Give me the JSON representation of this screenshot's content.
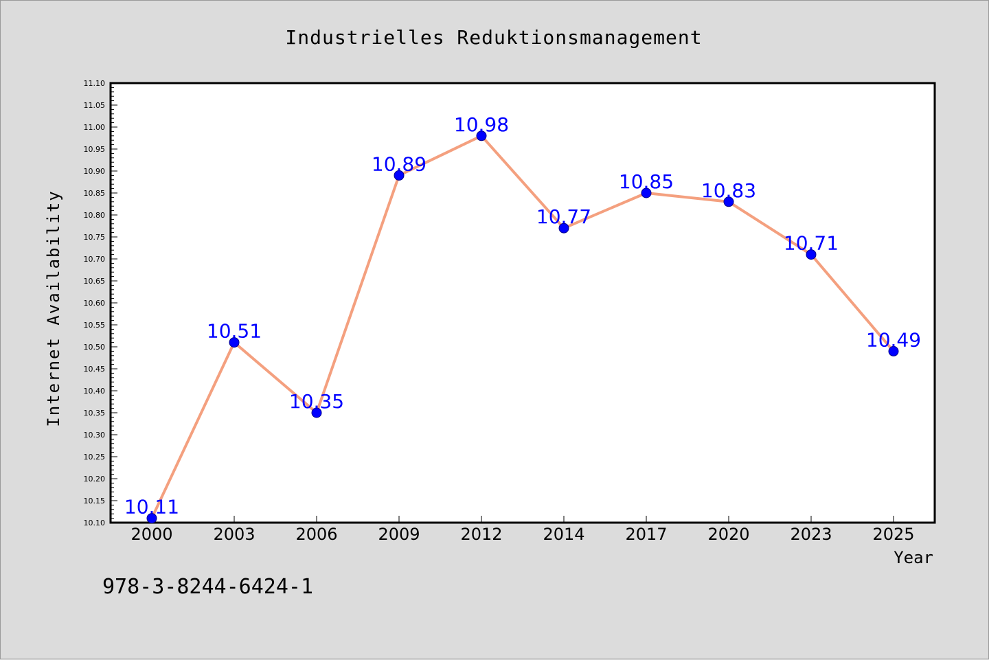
{
  "chart_data": {
    "type": "line",
    "title": "Industrielles Reduktionsmanagement",
    "xlabel": "Year",
    "ylabel": "Internet Availability",
    "categories": [
      "2000",
      "2003",
      "2006",
      "2009",
      "2012",
      "2014",
      "2017",
      "2020",
      "2023",
      "2025"
    ],
    "series": [
      {
        "values": [
          10.11,
          10.51,
          10.35,
          10.89,
          10.98,
          10.77,
          10.85,
          10.83,
          10.71,
          10.49
        ],
        "data_labels": [
          "10.11",
          "10.51",
          "10.35",
          "10.89",
          "10.98",
          "10.77",
          "10.85",
          "10.83",
          "10.71",
          "10.49"
        ],
        "line_color": "#f4a07f",
        "marker_color": "#0000ff",
        "label_color": "#0000ff"
      }
    ],
    "ylim": [
      10.1,
      11.1
    ],
    "yticks": [
      "10.10",
      "10.15",
      "10.20",
      "10.25",
      "10.30",
      "10.35",
      "10.40",
      "10.45",
      "10.50",
      "10.55",
      "10.60",
      "10.65",
      "10.70",
      "10.75",
      "10.80",
      "10.85",
      "10.90",
      "10.95",
      "11.00",
      "11.05",
      "11.10"
    ],
    "grid": false,
    "legend": "none"
  },
  "footer": {
    "code": "978-3-8244-6424-1"
  },
  "colors": {
    "background": "#dcdcdc",
    "plot_background": "#ffffff",
    "axis": "#000000"
  }
}
